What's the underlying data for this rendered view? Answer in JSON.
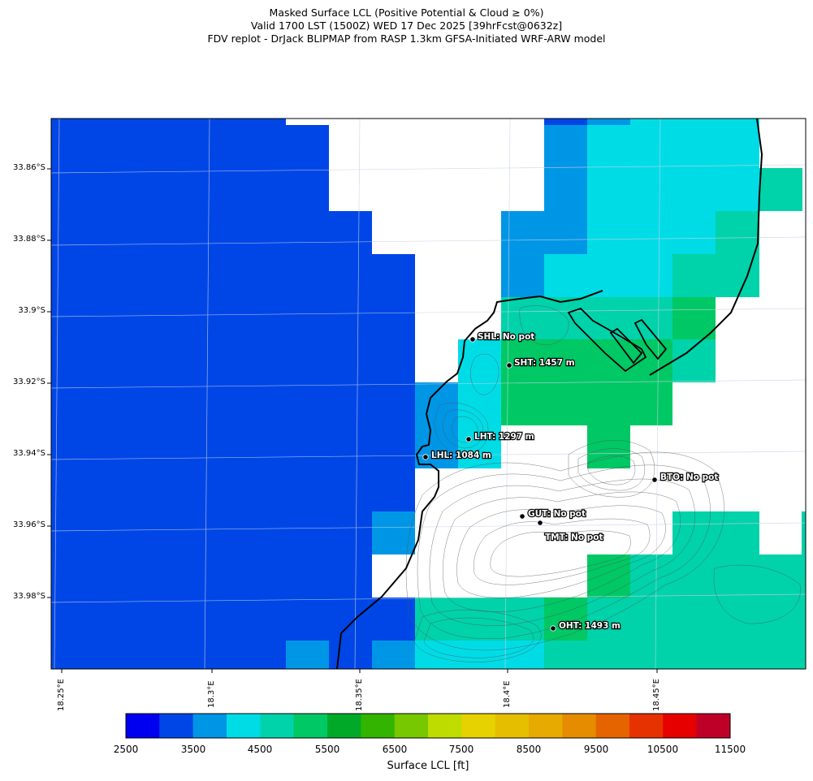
{
  "header": {
    "title_line1": "Masked Surface LCL (Positive Potential & Cloud ≥ 0%)",
    "title_line2": "Valid 1700 LST (1500Z) WED 17 Dec 2025 [39hrFcst@0632z]",
    "title_line3": "FDV replot - DrJack BLIPMAP from RASP 1.3km GFSA-Initiated WRF-ARW model"
  },
  "axes": {
    "lat_labels": [
      "33.86°S",
      "33.88°S",
      "33.9°S",
      "33.92°S",
      "33.94°S",
      "33.96°S",
      "33.98°S"
    ],
    "lon_labels": [
      "18.25°E",
      "18.3°E",
      "18.35°E",
      "18.4°E",
      "18.45°E"
    ]
  },
  "stations": [
    {
      "id": "SHL",
      "label": "SHL: No pot"
    },
    {
      "id": "SHT",
      "label": "SHT: 1457 m"
    },
    {
      "id": "LHT",
      "label": "LHT: 1297 m"
    },
    {
      "id": "LHL",
      "label": "LHL: 1084 m"
    },
    {
      "id": "BTO",
      "label": "BTO: No pot"
    },
    {
      "id": "GUT",
      "label": "GUT: No pot"
    },
    {
      "id": "TMT",
      "label": "TMT: No pot"
    },
    {
      "id": "OHT",
      "label": "OHT: 1493 m"
    }
  ],
  "colorbar": {
    "title": "Surface LCL [ft]",
    "tick_labels": [
      "2500",
      "3500",
      "4500",
      "5500",
      "6500",
      "7500",
      "8500",
      "9500",
      "10500",
      "11500"
    ],
    "colors": [
      "#0000f0",
      "#0046e6",
      "#0096e6",
      "#00dce6",
      "#00d2aa",
      "#00c864",
      "#00aa28",
      "#32b400",
      "#78c800",
      "#bedc00",
      "#e6d200",
      "#e6be00",
      "#e6aa00",
      "#e68c00",
      "#e66400",
      "#e63200",
      "#e60000",
      "#be0028"
    ]
  }
}
